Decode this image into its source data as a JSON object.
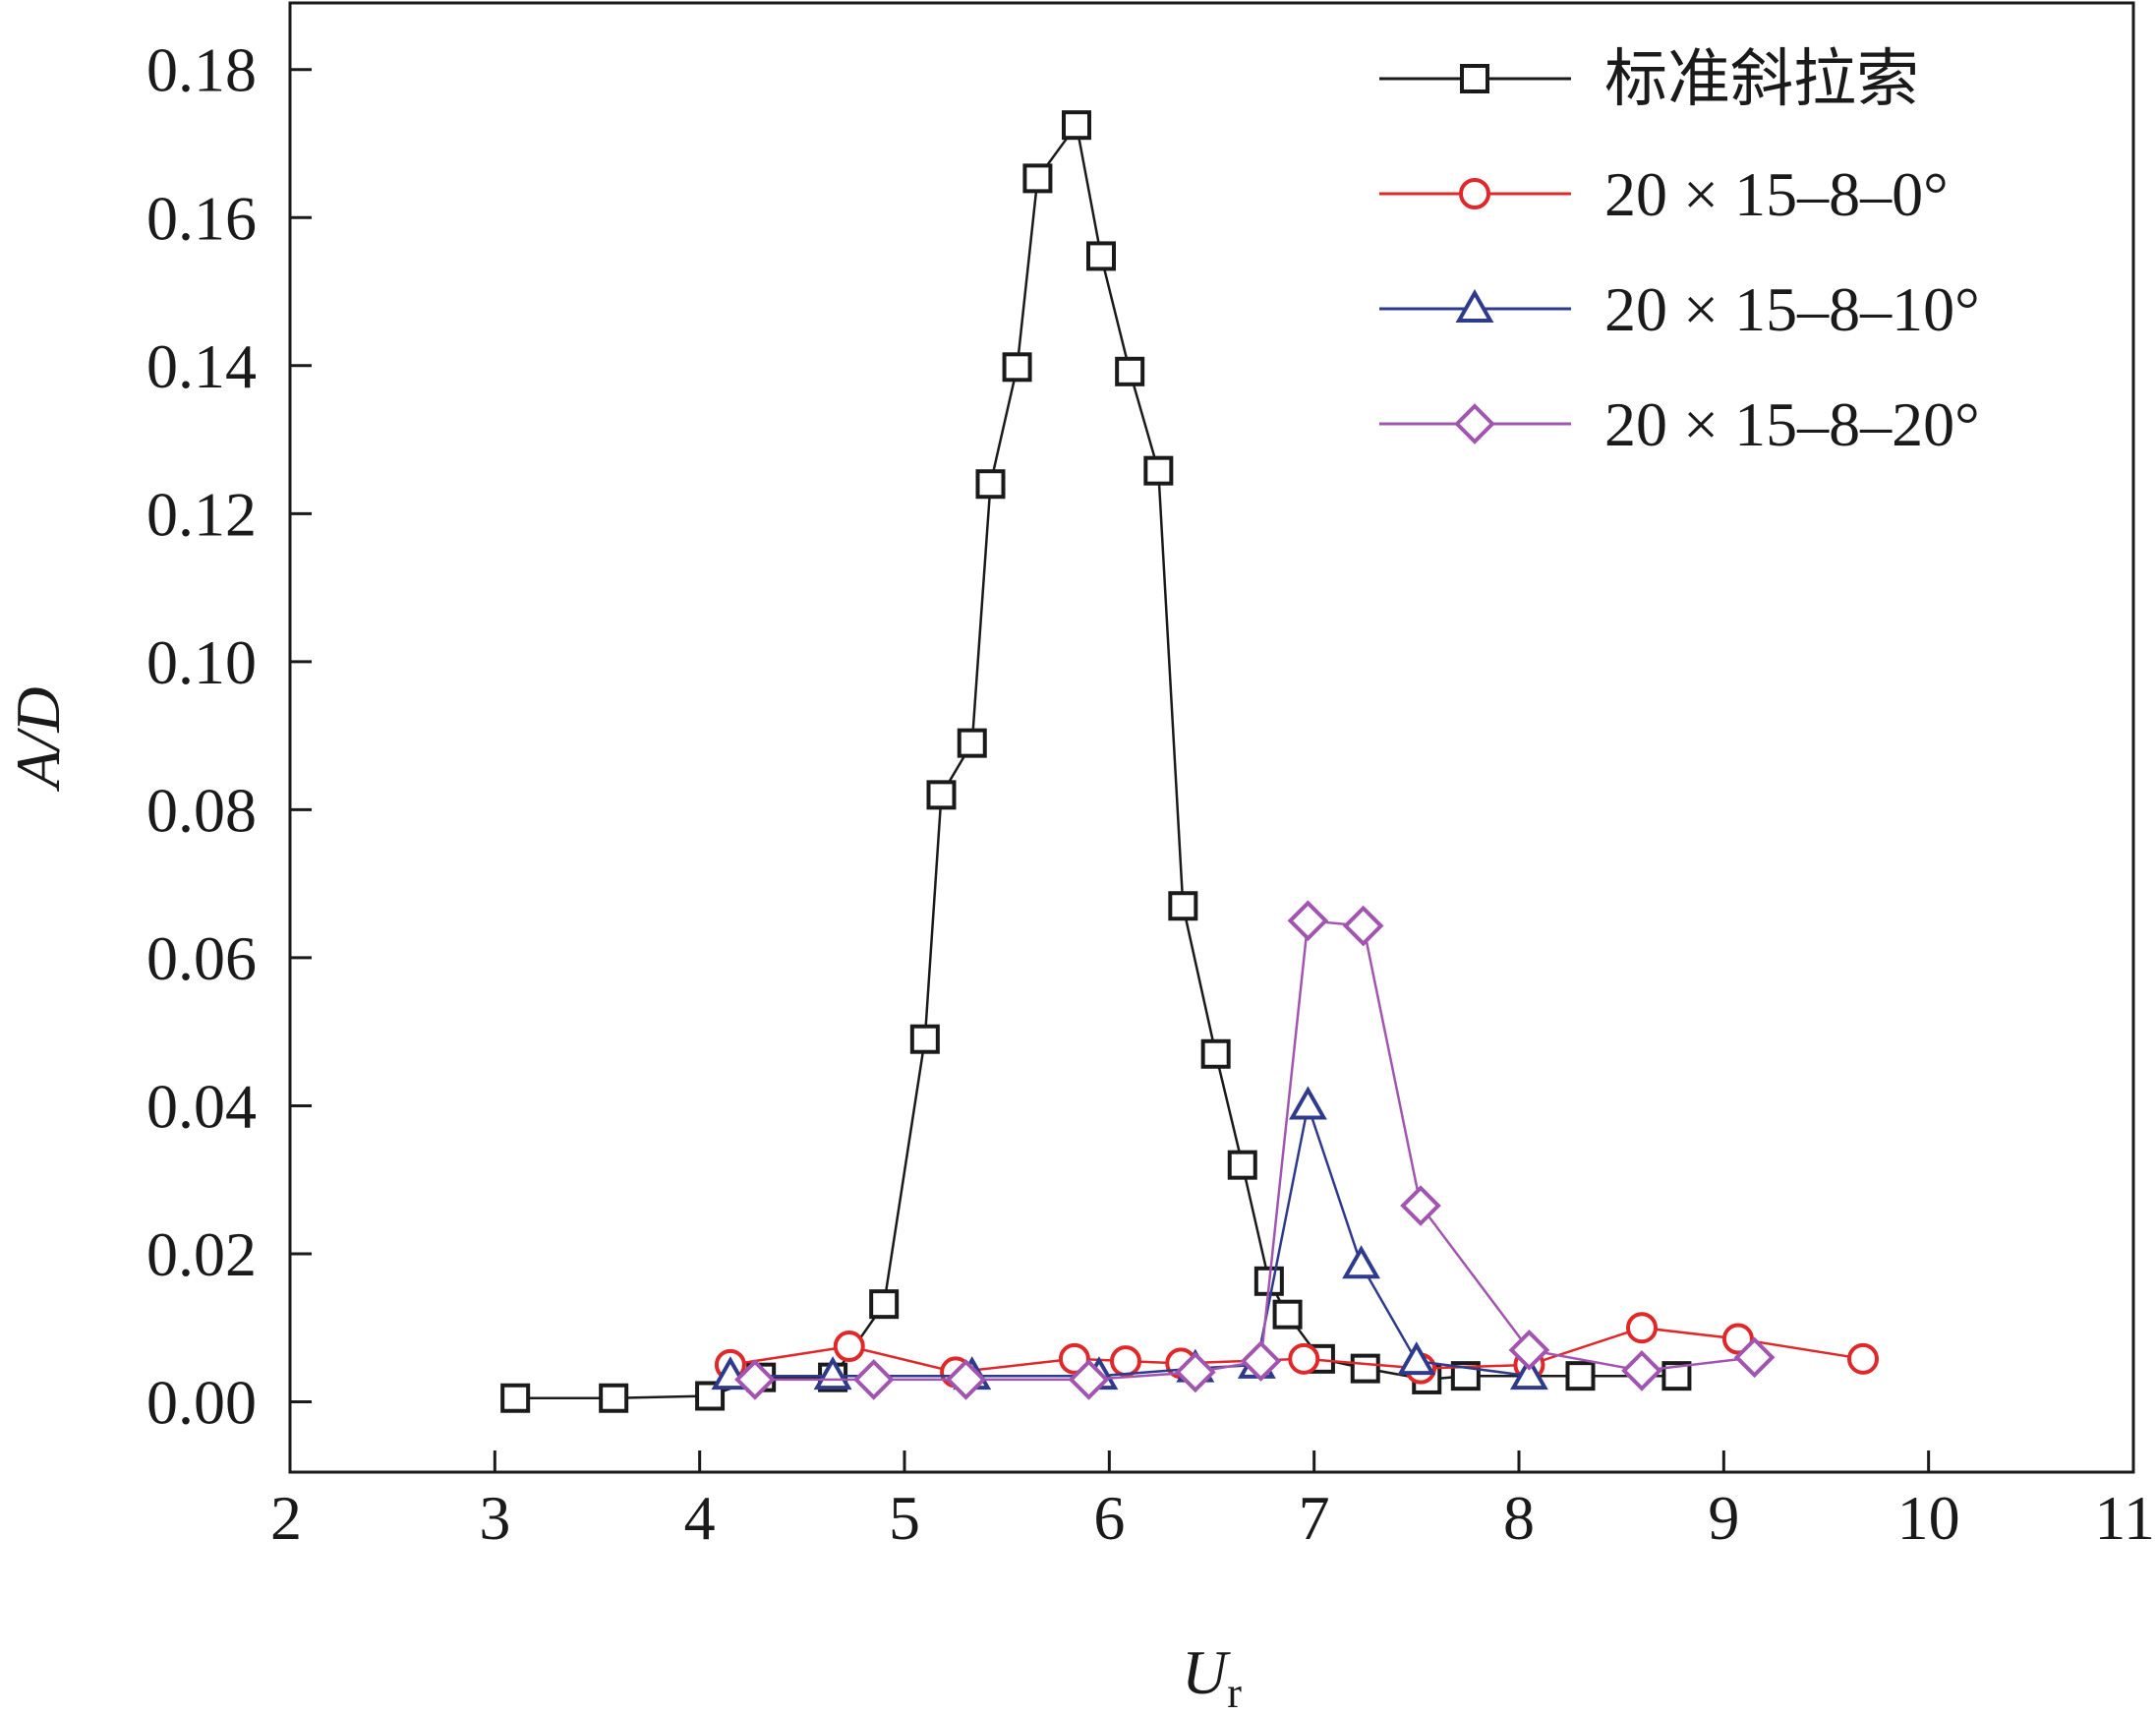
{
  "chart_data": {
    "type": "line",
    "xlabel": "U",
    "xlabel_sub": "r",
    "ylabel": "A/D",
    "xlim": [
      2,
      11
    ],
    "ylim": [
      -0.0095,
      0.189
    ],
    "xticks": [
      "2",
      "3",
      "4",
      "5",
      "6",
      "7",
      "8",
      "9",
      "10",
      "11"
    ],
    "yticks": [
      "0.00",
      "0.02",
      "0.04",
      "0.06",
      "0.08",
      "0.10",
      "0.12",
      "0.14",
      "0.16",
      "0.18"
    ],
    "grid": false,
    "legend_position": "top-right",
    "series": [
      {
        "name": "标准斜拉索",
        "color": "#1a1a1a",
        "marker": "square",
        "points": [
          [
            3.1,
            0.0005
          ],
          [
            3.58,
            0.0005
          ],
          [
            4.05,
            0.0008
          ],
          [
            4.3,
            0.0033
          ],
          [
            4.65,
            0.0033
          ],
          [
            4.9,
            0.0132
          ],
          [
            5.1,
            0.049
          ],
          [
            5.18,
            0.082
          ],
          [
            5.33,
            0.089
          ],
          [
            5.42,
            0.124
          ],
          [
            5.55,
            0.1398
          ],
          [
            5.65,
            0.1653
          ],
          [
            5.84,
            0.1725
          ],
          [
            5.96,
            0.1548
          ],
          [
            6.1,
            0.1392
          ],
          [
            6.24,
            0.1258
          ],
          [
            6.36,
            0.067
          ],
          [
            6.52,
            0.047
          ],
          [
            6.65,
            0.032
          ],
          [
            6.78,
            0.0163
          ],
          [
            6.87,
            0.0118
          ],
          [
            7.03,
            0.0058
          ],
          [
            7.25,
            0.0045
          ],
          [
            7.55,
            0.003
          ],
          [
            7.74,
            0.0035
          ],
          [
            8.3,
            0.0035
          ],
          [
            8.77,
            0.0035
          ]
        ]
      },
      {
        "name": "20 × 15–8–0°",
        "color": "#e0282a",
        "marker": "circle",
        "points": [
          [
            4.15,
            0.005
          ],
          [
            4.73,
            0.0075
          ],
          [
            5.25,
            0.004
          ],
          [
            5.83,
            0.0058
          ],
          [
            6.08,
            0.0055
          ],
          [
            6.35,
            0.0052
          ],
          [
            6.95,
            0.0058
          ],
          [
            7.52,
            0.0045
          ],
          [
            8.05,
            0.005
          ],
          [
            8.6,
            0.01
          ],
          [
            9.07,
            0.0085
          ],
          [
            9.68,
            0.0058
          ]
        ]
      },
      {
        "name": "20 × 15–8–10°",
        "color": "#2e3a8c",
        "marker": "triangle",
        "points": [
          [
            4.15,
            0.0035
          ],
          [
            4.65,
            0.0035
          ],
          [
            5.33,
            0.0035
          ],
          [
            5.95,
            0.0035
          ],
          [
            6.42,
            0.0045
          ],
          [
            6.72,
            0.005
          ],
          [
            6.97,
            0.04
          ],
          [
            7.23,
            0.0185
          ],
          [
            7.5,
            0.0055
          ],
          [
            8.05,
            0.0035
          ]
        ]
      },
      {
        "name": "20 × 15–8–20°",
        "color": "#a155b0",
        "marker": "diamond",
        "points": [
          [
            4.27,
            0.003
          ],
          [
            4.85,
            0.003
          ],
          [
            5.3,
            0.003
          ],
          [
            5.9,
            0.003
          ],
          [
            6.42,
            0.004
          ],
          [
            6.74,
            0.0055
          ],
          [
            6.97,
            0.065
          ],
          [
            7.24,
            0.0643
          ],
          [
            7.52,
            0.0265
          ],
          [
            8.05,
            0.007
          ],
          [
            8.6,
            0.0042
          ],
          [
            9.15,
            0.006
          ]
        ]
      }
    ]
  }
}
